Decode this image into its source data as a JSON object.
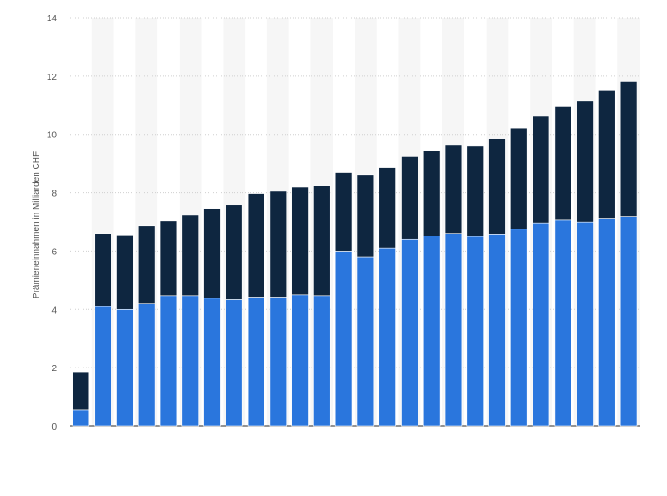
{
  "chart_data": {
    "type": "bar",
    "stacked": true,
    "title": "",
    "xlabel": "",
    "ylabel": "Prämieneinnahmen in Milliarden CHF",
    "ylim": [
      0,
      14
    ],
    "yticks": [
      0,
      2,
      4,
      6,
      8,
      10,
      12,
      14
    ],
    "grid": true,
    "legend": "none",
    "series": [
      {
        "color": "#2a76dd",
        "values": [
          0.55,
          4.1,
          4.0,
          4.2,
          4.47,
          4.47,
          4.38,
          4.33,
          4.42,
          4.42,
          4.5,
          4.47,
          6.0,
          5.8,
          6.1,
          6.4,
          6.52,
          6.6,
          6.5,
          6.58,
          6.75,
          6.95,
          7.08,
          6.98,
          7.12,
          7.18
        ]
      },
      {
        "color": "#0e2640",
        "values": [
          1.3,
          2.5,
          2.55,
          2.67,
          2.55,
          2.76,
          3.07,
          3.24,
          3.55,
          3.63,
          3.7,
          3.77,
          2.7,
          2.8,
          2.75,
          2.85,
          2.93,
          3.03,
          3.1,
          3.27,
          3.45,
          3.68,
          3.87,
          4.17,
          4.38,
          4.62
        ]
      }
    ]
  }
}
